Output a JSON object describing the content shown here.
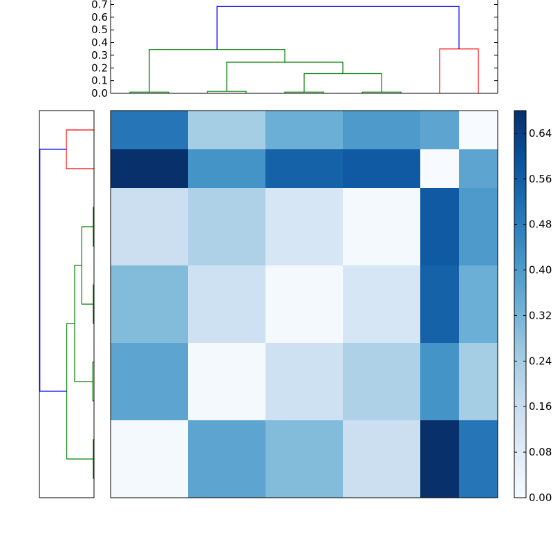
{
  "chart_data": [
    {
      "type": "heatmap",
      "title": "",
      "rows": 10,
      "cols": 10,
      "colormap": "Blues",
      "vmin": 0.0,
      "vmax": 0.68,
      "values": [
        [
          0.5,
          0.5,
          0.24,
          0.24,
          0.34,
          0.34,
          0.4,
          0.4,
          0.37,
          0.0
        ],
        [
          0.68,
          0.68,
          0.42,
          0.42,
          0.55,
          0.55,
          0.57,
          0.57,
          0.0,
          0.37
        ],
        [
          0.15,
          0.15,
          0.22,
          0.22,
          0.11,
          0.11,
          0.01,
          0.01,
          0.57,
          0.4
        ],
        [
          0.15,
          0.15,
          0.22,
          0.22,
          0.11,
          0.11,
          0.01,
          0.01,
          0.57,
          0.4
        ],
        [
          0.3,
          0.3,
          0.14,
          0.14,
          0.01,
          0.01,
          0.11,
          0.11,
          0.55,
          0.34
        ],
        [
          0.3,
          0.3,
          0.14,
          0.14,
          0.01,
          0.01,
          0.11,
          0.11,
          0.55,
          0.34
        ],
        [
          0.37,
          0.37,
          0.01,
          0.01,
          0.14,
          0.14,
          0.22,
          0.22,
          0.42,
          0.24
        ],
        [
          0.37,
          0.37,
          0.01,
          0.01,
          0.14,
          0.14,
          0.22,
          0.22,
          0.42,
          0.24
        ],
        [
          0.01,
          0.01,
          0.37,
          0.37,
          0.3,
          0.3,
          0.15,
          0.15,
          0.68,
          0.5
        ],
        [
          0.01,
          0.01,
          0.37,
          0.37,
          0.3,
          0.3,
          0.15,
          0.15,
          0.68,
          0.5
        ]
      ]
    },
    {
      "type": "dendrogram",
      "orientation": "top",
      "ylim": [
        0.0,
        0.7
      ],
      "yticks": [
        "0.0",
        "0.1",
        "0.2",
        "0.3",
        "0.4",
        "0.5",
        "0.6",
        "0.7"
      ],
      "links": [
        {
          "x": [
            0.5,
            0.5,
            1.5,
            1.5
          ],
          "y": [
            0.0,
            0.01,
            0.01,
            0.0
          ],
          "color": "#008000"
        },
        {
          "x": [
            2.5,
            2.5,
            3.5,
            3.5
          ],
          "y": [
            0.0,
            0.015,
            0.015,
            0.0
          ],
          "color": "#008000"
        },
        {
          "x": [
            4.5,
            4.5,
            5.5,
            5.5
          ],
          "y": [
            0.0,
            0.01,
            0.01,
            0.0
          ],
          "color": "#008000"
        },
        {
          "x": [
            6.5,
            6.5,
            7.5,
            7.5
          ],
          "y": [
            0.0,
            0.01,
            0.01,
            0.0
          ],
          "color": "#008000"
        },
        {
          "x": [
            5.0,
            5.0,
            7.0,
            7.0
          ],
          "y": [
            0.01,
            0.155,
            0.155,
            0.01
          ],
          "color": "#008000"
        },
        {
          "x": [
            3.0,
            3.0,
            6.0,
            6.0
          ],
          "y": [
            0.015,
            0.245,
            0.245,
            0.155
          ],
          "color": "#008000"
        },
        {
          "x": [
            1.0,
            1.0,
            4.5,
            4.5
          ],
          "y": [
            0.01,
            0.345,
            0.345,
            0.245
          ],
          "color": "#008000"
        },
        {
          "x": [
            8.5,
            8.5,
            9.5,
            9.5
          ],
          "y": [
            0.0,
            0.35,
            0.35,
            0.0
          ],
          "color": "#ff0000"
        },
        {
          "x": [
            2.75,
            2.75,
            9.0,
            9.0
          ],
          "y": [
            0.345,
            0.685,
            0.685,
            0.35
          ],
          "color": "#0000ff"
        }
      ]
    },
    {
      "type": "dendrogram",
      "orientation": "left",
      "links": [
        {
          "x": [
            0.5,
            0.5,
            1.5,
            1.5
          ],
          "y": [
            0.0,
            0.35,
            0.35,
            0.0
          ],
          "color": "#ff0000"
        },
        {
          "x": [
            2.5,
            2.5,
            3.5,
            3.5
          ],
          "y": [
            0.0,
            0.01,
            0.01,
            0.0
          ],
          "color": "#008000"
        },
        {
          "x": [
            4.5,
            4.5,
            5.5,
            5.5
          ],
          "y": [
            0.0,
            0.01,
            0.01,
            0.0
          ],
          "color": "#008000"
        },
        {
          "x": [
            6.5,
            6.5,
            7.5,
            7.5
          ],
          "y": [
            0.0,
            0.015,
            0.015,
            0.0
          ],
          "color": "#008000"
        },
        {
          "x": [
            8.5,
            8.5,
            9.5,
            9.5
          ],
          "y": [
            0.0,
            0.01,
            0.01,
            0.0
          ],
          "color": "#008000"
        },
        {
          "x": [
            3.0,
            3.0,
            5.0,
            5.0
          ],
          "y": [
            0.01,
            0.155,
            0.155,
            0.01
          ],
          "color": "#008000"
        },
        {
          "x": [
            4.0,
            4.0,
            7.0,
            7.0
          ],
          "y": [
            0.155,
            0.245,
            0.245,
            0.015
          ],
          "color": "#008000"
        },
        {
          "x": [
            5.5,
            5.5,
            9.0,
            9.0
          ],
          "y": [
            0.245,
            0.345,
            0.345,
            0.01
          ],
          "color": "#008000"
        },
        {
          "x": [
            1.0,
            1.0,
            7.25,
            7.25
          ],
          "y": [
            0.35,
            0.685,
            0.685,
            0.345
          ],
          "color": "#0000ff"
        }
      ]
    },
    {
      "type": "colorbar",
      "range": [
        0.0,
        0.68
      ],
      "ticks": [
        "0.00",
        "0.08",
        "0.16",
        "0.24",
        "0.32",
        "0.40",
        "0.48",
        "0.56",
        "0.64"
      ]
    }
  ]
}
